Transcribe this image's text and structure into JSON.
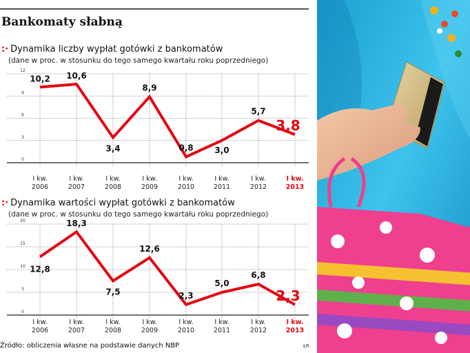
{
  "title": "Bankomaty słabną",
  "source": "Źródło: obliczenia własne na podstawie danych NBP",
  "credit": "ŁR",
  "colors": {
    "line": "#e30613",
    "highlight": "#e30613",
    "text": "#111111",
    "grid": "#888888"
  },
  "chart_data": [
    {
      "type": "line",
      "title": "Dynamika liczby wypłat gotówki z bankomatów",
      "subtitle": "(dane w proc. w stosunku do tego samego kwartału roku poprzedniego)",
      "categories": [
        [
          "I kw.",
          "2006"
        ],
        [
          "I kw.",
          "2007"
        ],
        [
          "I kw.",
          "2008"
        ],
        [
          "I kw.",
          "2009"
        ],
        [
          "I kw.",
          "2010"
        ],
        [
          "I kw.",
          "2011"
        ],
        [
          "I kw.",
          "2012"
        ],
        [
          "I kw.",
          "2013"
        ]
      ],
      "values": [
        10.2,
        10.6,
        3.4,
        8.9,
        0.8,
        3.0,
        5.7,
        3.8
      ],
      "labels": [
        "10,2",
        "10,6",
        "3,4",
        "8,9",
        "0,8",
        "3,0",
        "5,7",
        "3,8"
      ],
      "yticks": [
        0,
        3,
        6,
        9,
        12
      ],
      "ylim": [
        0,
        12
      ],
      "grid": true,
      "highlight_last": true
    },
    {
      "type": "line",
      "title": "Dynamika wartości wypłat gotówki z bankomatów",
      "subtitle": "(dane w proc. w stosunku do tego samego kwartału roku poprzedniego)",
      "categories": [
        [
          "I kw.",
          "2006"
        ],
        [
          "I kw.",
          "2007"
        ],
        [
          "I kw.",
          "2008"
        ],
        [
          "I kw.",
          "2009"
        ],
        [
          "I kw.",
          "2010"
        ],
        [
          "I kw.",
          "2011"
        ],
        [
          "I kw.",
          "2012"
        ],
        [
          "I kw.",
          "2013"
        ]
      ],
      "values": [
        12.8,
        18.3,
        7.5,
        12.6,
        2.3,
        5.0,
        6.8,
        2.3
      ],
      "labels": [
        "12,8",
        "18,3",
        "7,5",
        "12,6",
        "2,3",
        "5,0",
        "6,8",
        "2,3"
      ],
      "yticks": [
        0,
        5,
        10,
        15,
        20
      ],
      "ylim": [
        0,
        20
      ],
      "grid": true,
      "highlight_last": true
    }
  ]
}
